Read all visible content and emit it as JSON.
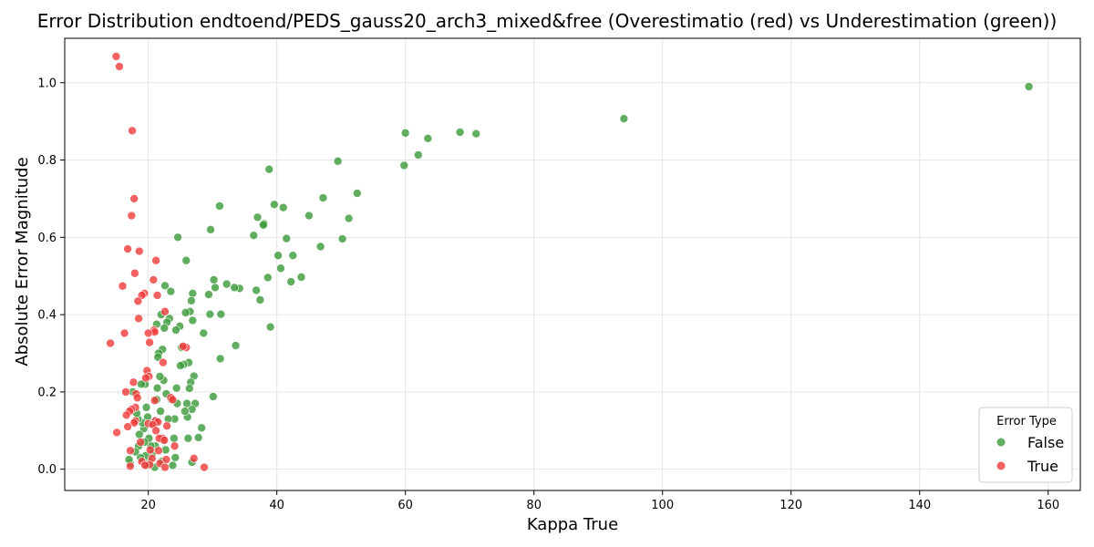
{
  "chart_data": {
    "type": "scatter",
    "title": "Error Distribution endtoend/PEDS_gauss20_arch3_mixed&free (Overestimatio (red) vs Underestimation (green))",
    "xlabel": "Kappa True",
    "ylabel": "Absolute Error Magnitude",
    "xlim": [
      7,
      165
    ],
    "ylim": [
      -0.055,
      1.115
    ],
    "xticks": [
      20,
      40,
      60,
      80,
      100,
      120,
      140,
      160
    ],
    "yticks": [
      0.0,
      0.2,
      0.4,
      0.6,
      0.8,
      1.0
    ],
    "xtick_labels": [
      "20",
      "40",
      "60",
      "80",
      "100",
      "120",
      "140",
      "160"
    ],
    "ytick_labels": [
      "0.0",
      "0.2",
      "0.4",
      "0.6",
      "0.8",
      "1.0"
    ],
    "grid": true,
    "legend": {
      "title": "Error Type",
      "placement": "bottom-right",
      "entries": [
        {
          "label": "False",
          "color": "#3a9a3a"
        },
        {
          "label": "True",
          "color": "#f03a3a"
        }
      ]
    },
    "series": [
      {
        "name": "False",
        "color": "#3a9a3a",
        "points": [
          [
            157.0,
            0.99
          ],
          [
            94.0,
            0.907
          ],
          [
            71.0,
            0.868
          ],
          [
            68.5,
            0.872
          ],
          [
            63.5,
            0.856
          ],
          [
            62.0,
            0.813
          ],
          [
            60.0,
            0.87
          ],
          [
            59.8,
            0.786
          ],
          [
            52.5,
            0.714
          ],
          [
            51.2,
            0.649
          ],
          [
            50.2,
            0.596
          ],
          [
            49.5,
            0.797
          ],
          [
            47.2,
            0.702
          ],
          [
            46.8,
            0.576
          ],
          [
            45.0,
            0.656
          ],
          [
            43.8,
            0.497
          ],
          [
            42.5,
            0.553
          ],
          [
            42.2,
            0.485
          ],
          [
            41.5,
            0.597
          ],
          [
            41.0,
            0.677
          ],
          [
            40.6,
            0.52
          ],
          [
            40.2,
            0.553
          ],
          [
            39.6,
            0.685
          ],
          [
            39.0,
            0.368
          ],
          [
            38.8,
            0.776
          ],
          [
            38.6,
            0.496
          ],
          [
            38.0,
            0.635
          ],
          [
            37.9,
            0.632
          ],
          [
            37.4,
            0.438
          ],
          [
            37.0,
            0.652
          ],
          [
            36.8,
            0.463
          ],
          [
            36.4,
            0.605
          ],
          [
            34.2,
            0.468
          ],
          [
            33.4,
            0.47
          ],
          [
            33.6,
            0.32
          ],
          [
            32.2,
            0.479
          ],
          [
            31.3,
            0.401
          ],
          [
            31.1,
            0.681
          ],
          [
            31.2,
            0.286
          ],
          [
            30.4,
            0.47
          ],
          [
            30.2,
            0.49
          ],
          [
            30.1,
            0.188
          ],
          [
            29.7,
            0.62
          ],
          [
            29.6,
            0.401
          ],
          [
            29.4,
            0.452
          ],
          [
            28.6,
            0.352
          ],
          [
            28.3,
            0.107
          ],
          [
            27.8,
            0.082
          ],
          [
            27.3,
            0.17
          ],
          [
            27.1,
            0.241
          ],
          [
            26.9,
            0.455
          ],
          [
            26.9,
            0.385
          ],
          [
            26.8,
            0.155
          ],
          [
            26.8,
            0.018
          ],
          [
            26.7,
            0.436
          ],
          [
            26.6,
            0.225
          ],
          [
            26.5,
            0.408
          ],
          [
            26.4,
            0.209
          ],
          [
            26.3,
            0.276
          ],
          [
            26.2,
            0.08
          ],
          [
            26.1,
            0.135
          ],
          [
            26.0,
            0.17
          ],
          [
            25.9,
            0.54
          ],
          [
            25.8,
            0.405
          ],
          [
            25.7,
            0.15
          ],
          [
            25.5,
            0.271
          ],
          [
            25.2,
            0.315
          ],
          [
            25.0,
            0.268
          ],
          [
            24.9,
            0.37
          ],
          [
            24.6,
            0.6
          ],
          [
            24.5,
            0.17
          ],
          [
            24.4,
            0.21
          ],
          [
            24.3,
            0.36
          ],
          [
            24.2,
            0.03
          ],
          [
            24.1,
            0.13
          ],
          [
            24.0,
            0.08
          ],
          [
            23.8,
            0.01
          ],
          [
            23.6,
            0.18
          ],
          [
            23.5,
            0.46
          ],
          [
            23.3,
            0.39
          ],
          [
            23.1,
            0.13
          ],
          [
            22.9,
            0.38
          ],
          [
            22.8,
            0.195
          ],
          [
            22.7,
            0.05
          ],
          [
            22.6,
            0.475
          ],
          [
            22.5,
            0.365
          ],
          [
            22.4,
            0.23
          ],
          [
            22.3,
            0.075
          ],
          [
            22.2,
            0.31
          ],
          [
            22.1,
            0.02
          ],
          [
            22.0,
            0.4
          ],
          [
            21.9,
            0.15
          ],
          [
            21.8,
            0.24
          ],
          [
            21.6,
            0.3
          ],
          [
            21.5,
            0.29
          ],
          [
            21.4,
            0.21
          ],
          [
            21.3,
            0.375
          ],
          [
            21.3,
            0.18
          ],
          [
            21.2,
            0.125
          ],
          [
            21.1,
            0.06
          ],
          [
            21.0,
            0.005
          ],
          [
            20.8,
            0.12
          ],
          [
            20.6,
            0.04
          ],
          [
            20.4,
            0.06
          ],
          [
            20.2,
            0.02
          ],
          [
            20.1,
            0.08
          ],
          [
            19.9,
            0.135
          ],
          [
            19.8,
            0.01
          ],
          [
            19.7,
            0.16
          ],
          [
            19.6,
            0.035
          ],
          [
            19.5,
            0.22
          ],
          [
            19.4,
            0.07
          ],
          [
            19.3,
            0.105
          ],
          [
            19.1,
            0.12
          ],
          [
            18.9,
            0.22
          ],
          [
            18.8,
            0.03
          ],
          [
            18.6,
            0.09
          ],
          [
            18.5,
            0.06
          ],
          [
            18.4,
            0.13
          ],
          [
            18.2,
            0.145
          ],
          [
            18.0,
            0.045
          ],
          [
            17.6,
            0.2
          ],
          [
            17.2,
            0.015
          ],
          [
            17.0,
            0.025
          ]
        ]
      },
      {
        "name": "True",
        "color": "#f03a3a",
        "points": [
          [
            15.0,
            1.068
          ],
          [
            15.5,
            1.042
          ],
          [
            17.5,
            0.876
          ],
          [
            17.8,
            0.7
          ],
          [
            17.4,
            0.656
          ],
          [
            16.8,
            0.57
          ],
          [
            18.6,
            0.564
          ],
          [
            21.2,
            0.54
          ],
          [
            17.9,
            0.507
          ],
          [
            20.8,
            0.49
          ],
          [
            16.0,
            0.474
          ],
          [
            19.4,
            0.455
          ],
          [
            19.0,
            0.45
          ],
          [
            21.4,
            0.45
          ],
          [
            18.4,
            0.435
          ],
          [
            22.6,
            0.408
          ],
          [
            18.5,
            0.39
          ],
          [
            20.9,
            0.36
          ],
          [
            21.0,
            0.355
          ],
          [
            16.3,
            0.352
          ],
          [
            20.0,
            0.352
          ],
          [
            20.2,
            0.328
          ],
          [
            14.1,
            0.326
          ],
          [
            25.9,
            0.315
          ],
          [
            25.4,
            0.318
          ],
          [
            22.3,
            0.276
          ],
          [
            19.8,
            0.255
          ],
          [
            20.1,
            0.24
          ],
          [
            19.6,
            0.236
          ],
          [
            17.7,
            0.225
          ],
          [
            16.5,
            0.2
          ],
          [
            18.1,
            0.195
          ],
          [
            18.3,
            0.185
          ],
          [
            23.5,
            0.185
          ],
          [
            23.8,
            0.18
          ],
          [
            21.0,
            0.178
          ],
          [
            18.0,
            0.16
          ],
          [
            17.4,
            0.155
          ],
          [
            17.1,
            0.15
          ],
          [
            16.6,
            0.14
          ],
          [
            18.0,
            0.125
          ],
          [
            21.1,
            0.125
          ],
          [
            21.5,
            0.122
          ],
          [
            17.8,
            0.12
          ],
          [
            20.0,
            0.118
          ],
          [
            20.7,
            0.115
          ],
          [
            22.9,
            0.112
          ],
          [
            16.8,
            0.11
          ],
          [
            15.1,
            0.095
          ],
          [
            21.2,
            0.1
          ],
          [
            22.2,
            0.08
          ],
          [
            21.7,
            0.08
          ],
          [
            22.5,
            0.075
          ],
          [
            18.8,
            0.07
          ],
          [
            24.1,
            0.06
          ],
          [
            20.3,
            0.05
          ],
          [
            17.2,
            0.048
          ],
          [
            21.6,
            0.048
          ],
          [
            27.1,
            0.028
          ],
          [
            20.6,
            0.028
          ],
          [
            22.8,
            0.025
          ],
          [
            19.0,
            0.02
          ],
          [
            21.8,
            0.015
          ],
          [
            20.2,
            0.012
          ],
          [
            19.5,
            0.01
          ],
          [
            17.2,
            0.008
          ],
          [
            22.6,
            0.005
          ],
          [
            28.7,
            0.005
          ]
        ]
      }
    ]
  }
}
